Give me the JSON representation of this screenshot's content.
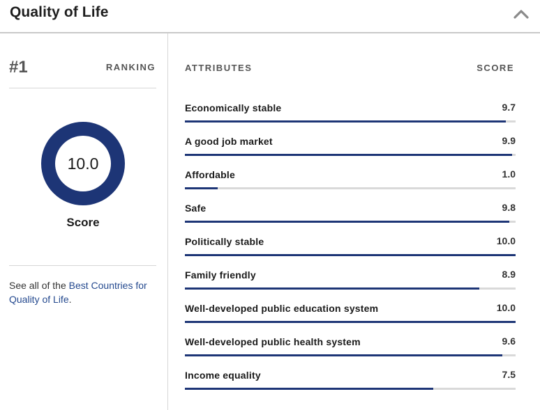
{
  "header": {
    "title": "Quality of Life"
  },
  "ranking": {
    "rank": "#1",
    "label": "RANKING",
    "score": "10.0",
    "score_label": "Score"
  },
  "see_all": {
    "prefix": "See all of the ",
    "link_text": "Best Countries for Quality of Life",
    "suffix": "."
  },
  "attributes": {
    "header_left": "ATTRIBUTES",
    "header_right": "SCORE",
    "max_score": 10,
    "items": [
      {
        "name": "Economically stable",
        "score": "9.7",
        "value": 9.7
      },
      {
        "name": "A good job market",
        "score": "9.9",
        "value": 9.9
      },
      {
        "name": "Affordable",
        "score": "1.0",
        "value": 1.0
      },
      {
        "name": "Safe",
        "score": "9.8",
        "value": 9.8
      },
      {
        "name": "Politically stable",
        "score": "10.0",
        "value": 10.0
      },
      {
        "name": "Family friendly",
        "score": "8.9",
        "value": 8.9
      },
      {
        "name": "Well-developed public education system",
        "score": "10.0",
        "value": 10.0
      },
      {
        "name": "Well-developed public health system",
        "score": "9.6",
        "value": 9.6
      },
      {
        "name": "Income equality",
        "score": "7.5",
        "value": 7.5
      }
    ]
  },
  "colors": {
    "accent": "#1d3576",
    "track": "#d9d9d9",
    "link": "#254a8f"
  },
  "icons": {
    "collapse": "chevron-up-icon"
  }
}
